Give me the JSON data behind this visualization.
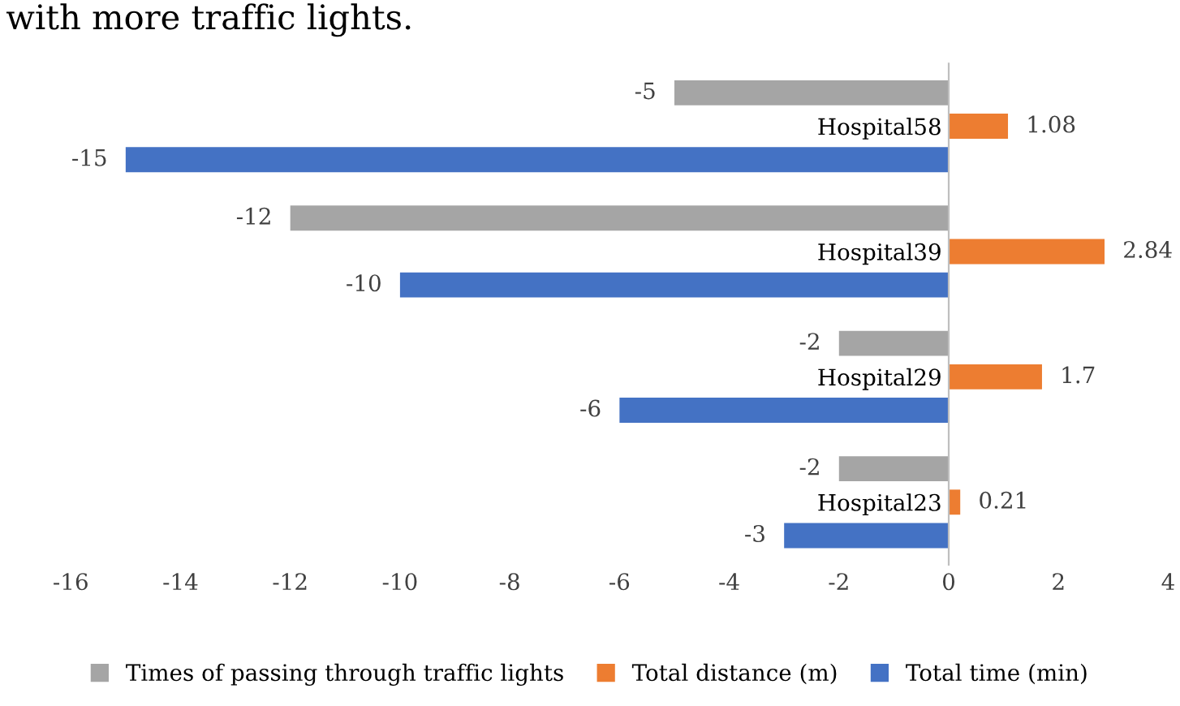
{
  "chart_data": {
    "type": "bar",
    "orientation": "horizontal",
    "categories": [
      "Hospital58",
      "Hospital39",
      "Hospital29",
      "Hospital23"
    ],
    "series": [
      {
        "name": "Times of passing through traffic lights",
        "color": "#a5a5a5",
        "values": [
          -5,
          -12,
          -2,
          -2
        ]
      },
      {
        "name": "Total distance (m)",
        "color": "#ed7d31",
        "values": [
          1.08,
          2.84,
          1.7,
          0.21
        ]
      },
      {
        "name": "Total time (min)",
        "color": "#4472c4",
        "values": [
          -15,
          -10,
          -6,
          -3
        ]
      }
    ],
    "xlim": [
      -16,
      4
    ],
    "xticks": [
      -16,
      -14,
      -12,
      -10,
      -8,
      -6,
      -4,
      -2,
      0,
      2,
      4
    ],
    "data_labels": true,
    "legend": "bottom",
    "grid": false,
    "annotations": [
      "with more traffic lights."
    ]
  }
}
